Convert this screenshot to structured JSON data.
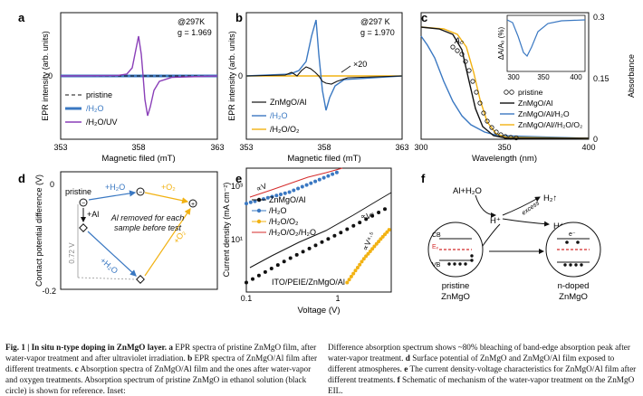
{
  "colors": {
    "blue": "#3a78c2",
    "purple": "#8a3fb8",
    "orange": "#f2b212",
    "red": "#d42a2a",
    "black": "#111111"
  },
  "panel_a": {
    "label": "a",
    "temp": "@297K",
    "g": "g = 1.969",
    "ylabel": "EPR intensity (arb. units)",
    "xlabel": "Magnetic filed (mT)",
    "ytick0": "0",
    "legend": [
      "pristine",
      "/H₂O",
      "/H₂O/UV"
    ]
  },
  "panel_b": {
    "label": "b",
    "temp": "@297 K",
    "g": "g = 1.970",
    "mult": "×20",
    "ylabel": "EPR intensity (arb. units)",
    "xlabel": "Magnetic filed (mT)",
    "ytick0": "0",
    "legend": [
      "ZnMgO/Al",
      "/H₂O",
      "/H₂O/O₂"
    ]
  },
  "panel_c": {
    "label": "c",
    "xlabel": "Wavelength (nm)",
    "ylabel": "Absorbance",
    "a0": "A₀",
    "inset_ylabel": "ΔA/A₀ (%)",
    "legend": [
      "pristine",
      "ZnMgO/Al",
      "ZnMgO/Al/H₂O",
      "ZnMgO/Al//H₂O/O₂"
    ]
  },
  "panel_d": {
    "label": "d",
    "ylabel": "Contact potential difference (V)",
    "pristine": "pristine",
    "al": "+Al",
    "h2o_top": "+H₂O",
    "o2_top": "+O₂",
    "h2o_bot": "+H₂O",
    "o2_right": "+O₂",
    "note": "Al removed for each sample before test",
    "delta": "0.72 V",
    "yt0": "0",
    "ytm": "-0.2"
  },
  "panel_e": {
    "label": "e",
    "ylabel": "Current density (mA cm⁻²)",
    "xlabel": "Voltage (V)",
    "alphaV": "∝V",
    "alphaV2": "∝V²",
    "alphaV45": "∝V⁴·⁵",
    "device": "ITO/PEIE/ZnMgO/Al",
    "legend": [
      "ZnMgO/Al",
      "/H₂O",
      "/H₂O/O₂",
      "/H₂O/O₂/H₂O"
    ]
  },
  "panel_f": {
    "label": "f",
    "alh2o": "Al+H₂O",
    "h2": "H₂↑",
    "hplus1": "H⁺",
    "hplus2": "H⁺",
    "excess": "excess",
    "cb": "CB",
    "ef": "Eₓ",
    "vb": "VB",
    "eminus": "e⁻",
    "left_name": "pristine",
    "left_name2": "ZnMgO",
    "right_name": "n-doped",
    "right_name2": "ZnMgO"
  },
  "chart_data": [
    {
      "type": "line",
      "title": "a",
      "xlabel": "Magnetic filed (mT)",
      "ylabel": "EPR intensity (arb. units)",
      "xlim": [
        353,
        363
      ],
      "x_ticks": [
        353,
        358,
        363
      ],
      "series": [
        {
          "name": "pristine",
          "style": "dashed",
          "x": [
            353,
            363
          ],
          "values": [
            0,
            0
          ]
        },
        {
          "name": "/H2O",
          "x": [
            353,
            363
          ],
          "values": [
            0,
            0
          ]
        },
        {
          "name": "/H2O/UV",
          "x": [
            353,
            355,
            356.5,
            357.2,
            357.8,
            358.3,
            358.9,
            359.6,
            361,
            363
          ],
          "values": [
            0,
            0.01,
            0.05,
            0.25,
            1.0,
            -0.1,
            -0.9,
            -0.2,
            -0.03,
            0
          ]
        }
      ]
    },
    {
      "type": "line",
      "title": "b",
      "xlabel": "Magnetic filed (mT)",
      "ylabel": "EPR intensity (arb. units)",
      "xlim": [
        353,
        363
      ],
      "x_ticks": [
        353,
        358,
        363
      ],
      "series": [
        {
          "name": "ZnMgO/Al (x20)",
          "x": [
            353,
            356,
            357.5,
            358,
            358.8,
            360,
            363
          ],
          "values": [
            0,
            0,
            0.2,
            0.05,
            -0.15,
            0,
            0
          ]
        },
        {
          "name": "/H2O",
          "x": [
            353,
            356,
            357.3,
            357.9,
            358.5,
            359.2,
            363
          ],
          "values": [
            0,
            0.02,
            0.5,
            1.0,
            -0.6,
            -0.1,
            0
          ]
        },
        {
          "name": "/H2O/O2",
          "x": [
            353,
            363
          ],
          "values": [
            0,
            0
          ]
        }
      ]
    },
    {
      "type": "line",
      "title": "c",
      "xlabel": "Wavelength (nm)",
      "ylabel": "Absorbance",
      "xlim": [
        300,
        400
      ],
      "ylim": [
        0,
        0.3
      ],
      "x_ticks": [
        300,
        350,
        400
      ],
      "y_ticks": [
        0,
        0.15,
        0.3
      ],
      "series": [
        {
          "name": "pristine",
          "x": [
            300,
            320,
            330,
            340,
            350,
            360,
            400
          ],
          "values": [
            0.29,
            0.285,
            0.27,
            0.2,
            0.04,
            0.005,
            0
          ]
        },
        {
          "name": "ZnMgO/Al",
          "x": [
            300,
            320,
            330,
            340,
            350,
            400
          ],
          "values": [
            0.28,
            0.27,
            0.25,
            0.1,
            0.01,
            0
          ]
        },
        {
          "name": "ZnMgO/Al/H2O",
          "x": [
            300,
            310,
            320,
            330,
            340,
            400
          ],
          "values": [
            0.2,
            0.12,
            0.06,
            0.02,
            0.005,
            0
          ]
        },
        {
          "name": "ZnMgO/Al//H2O/O2",
          "x": [
            300,
            320,
            330,
            340,
            350,
            400
          ],
          "values": [
            0.29,
            0.28,
            0.26,
            0.14,
            0.02,
            0
          ]
        }
      ],
      "inset": {
        "xlim": [
          300,
          400
        ],
        "x_ticks": [
          300,
          350,
          400
        ],
        "ylabel": "ΔA/A₀ (%)",
        "x": [
          300,
          310,
          320,
          325,
          330,
          340,
          360,
          400
        ],
        "values": [
          0,
          -5,
          -45,
          -80,
          -50,
          -10,
          -2,
          0
        ]
      }
    },
    {
      "type": "scatter",
      "title": "d",
      "ylabel": "Contact potential difference (V)",
      "ylim": [
        -0.2,
        0.0
      ],
      "annotations": [
        "pristine",
        "+Al",
        "+H2O",
        "+O2",
        "0.72 V"
      ]
    },
    {
      "type": "line",
      "title": "e",
      "xlabel": "Voltage (V)",
      "ylabel": "Current density (mA cm⁻²)",
      "xscale": "log",
      "yscale": "log",
      "xlim": [
        0.1,
        4
      ],
      "x_ticks": [
        0.1,
        1
      ],
      "y_tick_labels": [
        "10³",
        "10¹"
      ],
      "series": [
        {
          "name": "ZnMgO/Al",
          "x": [
            0.1,
            0.3,
            1,
            2,
            4
          ],
          "values": [
            0.05,
            0.5,
            5,
            20,
            80
          ]
        },
        {
          "name": "/H2O",
          "x": [
            0.1,
            0.3,
            1
          ],
          "values": [
            100,
            300,
            2000
          ]
        },
        {
          "name": "/H2O/O2",
          "x": [
            1.3,
            2,
            3,
            4
          ],
          "values": [
            0.05,
            0.5,
            3,
            10
          ]
        },
        {
          "name": "/H2O/O2/H2O",
          "x": [
            0.1,
            0.3,
            1
          ],
          "values": [
            100,
            300,
            2000
          ]
        }
      ]
    }
  ],
  "caption": {
    "fig_label": "Fig. 1 | In situ n-type doping in ZnMgO layer.",
    "left_rest": " EPR spectra of pristine ZnMgO film, after water-vapor treatment and after ultraviolet irradiation. ",
    "a": "a",
    "b": "b",
    "c": "c",
    "d": "d",
    "e": "e",
    "f": "f",
    "left_b": " EPR spectra of ZnMgO/Al film after different treatments. ",
    "left_c": " Absorption spectra of ZnMgO/Al film and the ones after water-vapor and oxygen treatments. Absorption spectrum of pristine ZnMgO in ethanol solution (black circle) is shown for reference. Inset:",
    "right_1": "Difference absorption spectrum shows ~80% bleaching of band-edge absorption peak after water-vapor treatment. ",
    "right_d": " Surface potential of ZnMgO and ZnMgO/Al film exposed to different atmospheres. ",
    "right_e": " The current density-voltage characteristics for ZnMgO/Al film after different treatments. ",
    "right_f": " Schematic of mechanism of the water-vapor treatment on the ZnMgO EIL."
  }
}
